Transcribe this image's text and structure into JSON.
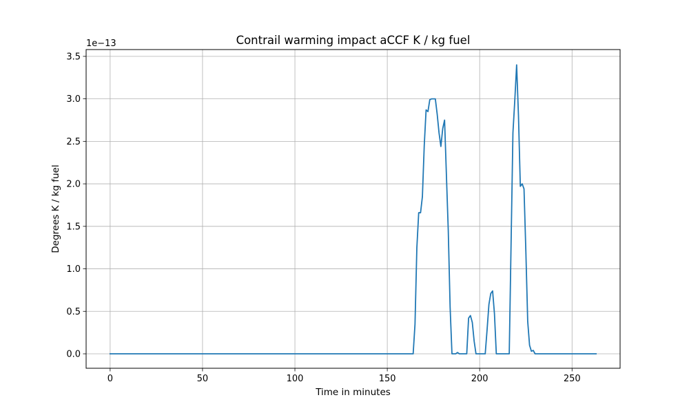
{
  "chart_data": {
    "type": "line",
    "title": "Contrail warming impact aCCF K / kg fuel",
    "xlabel": "Time in minutes",
    "ylabel": "Degrees K / kg fuel",
    "y_offset_label": "1e−13",
    "xlim": [
      -13,
      276
    ],
    "ylim": [
      -0.17,
      3.58
    ],
    "x_ticks": [
      0,
      50,
      100,
      150,
      200,
      250
    ],
    "x_tick_labels": [
      "0",
      "50",
      "100",
      "150",
      "200",
      "250"
    ],
    "y_ticks": [
      0.0,
      0.5,
      1.0,
      1.5,
      2.0,
      2.5,
      3.0,
      3.5
    ],
    "y_tick_labels": [
      "0.0",
      "0.5",
      "1.0",
      "1.5",
      "2.0",
      "2.5",
      "3.0",
      "3.5"
    ],
    "grid": true,
    "line_color": "#1f77b4",
    "series": [
      {
        "x": [
          0,
          163,
          164,
          165,
          166,
          167,
          168,
          169,
          170,
          171,
          172,
          173,
          174,
          175,
          176,
          177,
          178,
          179,
          180,
          181,
          182,
          183,
          184,
          185,
          186,
          187,
          188,
          189,
          190,
          191,
          192,
          193,
          194,
          195,
          196,
          197,
          198,
          199,
          200,
          201,
          202,
          203,
          204,
          205,
          206,
          207,
          208,
          209,
          210,
          211,
          212,
          213,
          214,
          215,
          216,
          217,
          218,
          219,
          220,
          221,
          222,
          223,
          224,
          225,
          226,
          227,
          228,
          229,
          230,
          231,
          232,
          263
        ],
        "y": [
          0.0,
          0.0,
          0.0,
          0.35,
          1.25,
          1.66,
          1.66,
          1.85,
          2.45,
          2.87,
          2.85,
          2.99,
          3.0,
          3.0,
          3.0,
          2.82,
          2.6,
          2.44,
          2.65,
          2.75,
          2.1,
          1.45,
          0.55,
          0.0,
          0.0,
          0.0,
          0.015,
          0.0,
          0.0,
          0.0,
          0.0,
          0.0,
          0.42,
          0.45,
          0.37,
          0.15,
          0.0,
          0.0,
          0.0,
          0.0,
          0.0,
          0.0,
          0.28,
          0.58,
          0.71,
          0.74,
          0.47,
          0.0,
          0.0,
          0.0,
          0.0,
          0.0,
          0.0,
          0.0,
          0.0,
          1.3,
          2.6,
          2.98,
          3.4,
          2.8,
          1.97,
          2.0,
          1.94,
          1.2,
          0.38,
          0.1,
          0.03,
          0.04,
          0.0,
          0.0,
          0.0,
          0.0
        ]
      }
    ]
  }
}
